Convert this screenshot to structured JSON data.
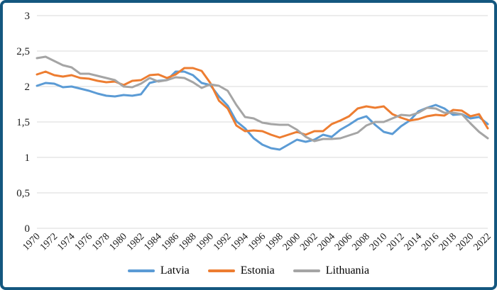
{
  "frame": {
    "border_color": "#14577F",
    "background": "#ffffff"
  },
  "chart_data": {
    "type": "line",
    "title": "",
    "xlabel": "",
    "ylabel": "",
    "ylim": [
      0,
      3
    ],
    "grid": "horizontal",
    "gridline_color": "#D9D9D9",
    "legend_position": "bottom",
    "decimal_separator": ",",
    "y_ticks": [
      {
        "value": 0,
        "label": "0"
      },
      {
        "value": 0.5,
        "label": "0,5"
      },
      {
        "value": 1,
        "label": "1"
      },
      {
        "value": 1.5,
        "label": "1,5"
      },
      {
        "value": 2,
        "label": "2"
      },
      {
        "value": 2.5,
        "label": "2,5"
      },
      {
        "value": 3,
        "label": "3"
      }
    ],
    "x": [
      1970,
      1971,
      1972,
      1973,
      1974,
      1975,
      1976,
      1977,
      1978,
      1979,
      1980,
      1981,
      1982,
      1983,
      1984,
      1985,
      1986,
      1987,
      1988,
      1989,
      1990,
      1991,
      1992,
      1993,
      1994,
      1995,
      1996,
      1997,
      1998,
      1999,
      2000,
      2001,
      2002,
      2003,
      2004,
      2005,
      2006,
      2007,
      2008,
      2009,
      2010,
      2011,
      2012,
      2013,
      2014,
      2015,
      2016,
      2017,
      2018,
      2019,
      2020,
      2021,
      2022
    ],
    "x_tick_labels": [
      "1970",
      "1972",
      "1974",
      "1976",
      "1978",
      "1980",
      "1982",
      "1984",
      "1986",
      "1988",
      "1990",
      "1992",
      "1994",
      "1996",
      "1998",
      "2000",
      "2002",
      "2004",
      "2006",
      "2008",
      "2010",
      "2012",
      "2014",
      "2016",
      "2018",
      "2020",
      "2022"
    ],
    "series": [
      {
        "name": "Latvia",
        "color": "#5B9BD5",
        "values": [
          2.01,
          2.05,
          2.04,
          1.99,
          2.0,
          1.97,
          1.94,
          1.9,
          1.87,
          1.86,
          1.88,
          1.87,
          1.89,
          2.05,
          2.08,
          2.09,
          2.21,
          2.21,
          2.16,
          2.05,
          2.02,
          1.86,
          1.73,
          1.51,
          1.41,
          1.27,
          1.18,
          1.13,
          1.11,
          1.18,
          1.25,
          1.22,
          1.25,
          1.32,
          1.29,
          1.39,
          1.46,
          1.54,
          1.58,
          1.46,
          1.36,
          1.33,
          1.44,
          1.52,
          1.65,
          1.7,
          1.74,
          1.69,
          1.6,
          1.61,
          1.55,
          1.57,
          1.47
        ]
      },
      {
        "name": "Estonia",
        "color": "#ED7D31",
        "values": [
          2.17,
          2.21,
          2.16,
          2.14,
          2.16,
          2.12,
          2.11,
          2.08,
          2.06,
          2.07,
          2.02,
          2.08,
          2.09,
          2.16,
          2.17,
          2.12,
          2.17,
          2.26,
          2.26,
          2.22,
          2.05,
          1.8,
          1.69,
          1.45,
          1.37,
          1.38,
          1.37,
          1.32,
          1.28,
          1.32,
          1.36,
          1.32,
          1.37,
          1.37,
          1.47,
          1.52,
          1.58,
          1.69,
          1.72,
          1.7,
          1.72,
          1.61,
          1.56,
          1.52,
          1.54,
          1.58,
          1.6,
          1.59,
          1.67,
          1.66,
          1.58,
          1.61,
          1.41
        ]
      },
      {
        "name": "Lithuania",
        "color": "#A5A5A5",
        "values": [
          2.4,
          2.42,
          2.36,
          2.3,
          2.27,
          2.18,
          2.18,
          2.15,
          2.12,
          2.09,
          2.0,
          1.99,
          2.04,
          2.12,
          2.07,
          2.09,
          2.13,
          2.12,
          2.06,
          1.98,
          2.03,
          2.01,
          1.94,
          1.74,
          1.57,
          1.55,
          1.49,
          1.47,
          1.46,
          1.46,
          1.39,
          1.29,
          1.23,
          1.26,
          1.26,
          1.27,
          1.31,
          1.35,
          1.45,
          1.5,
          1.5,
          1.55,
          1.6,
          1.59,
          1.63,
          1.7,
          1.69,
          1.63,
          1.63,
          1.61,
          1.48,
          1.36,
          1.27
        ]
      }
    ]
  }
}
